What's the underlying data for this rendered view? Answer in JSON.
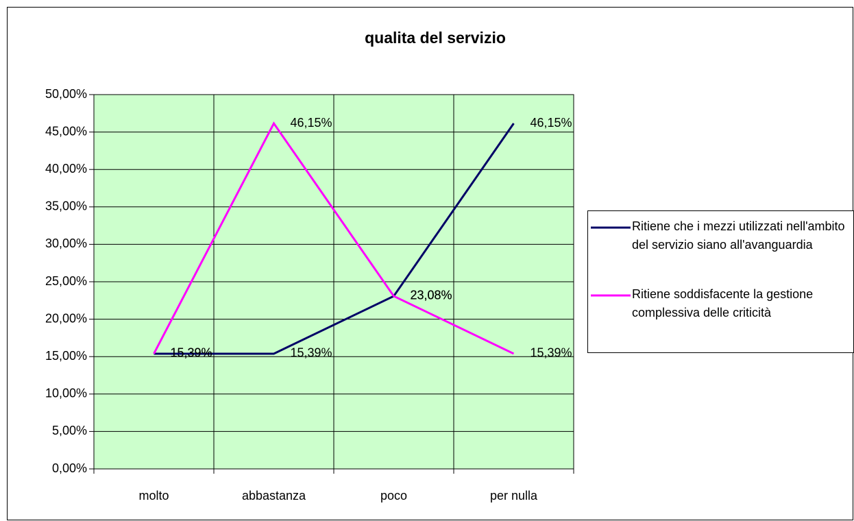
{
  "chart_data": {
    "type": "line",
    "title": "qualita del servizio",
    "categories": [
      "molto",
      "abbastanza",
      "poco",
      "per nulla"
    ],
    "series": [
      {
        "name": "Ritiene che i mezzi utilizzati nell'ambito del servizio siano all'avanguardia",
        "color": "#000066",
        "values": [
          15.39,
          15.39,
          23.08,
          46.15
        ],
        "value_labels": [
          "15,39%",
          "15,39%",
          "23,08%",
          "46,15%"
        ]
      },
      {
        "name": "Ritiene soddisfacente la gestione complessiva delle criticità",
        "color": "#ff00ff",
        "values": [
          15.39,
          46.15,
          23.08,
          15.39
        ],
        "value_labels": [
          "15,39%",
          "46,15%",
          "23,08%",
          "15,39%"
        ]
      }
    ],
    "ylim": [
      0,
      50
    ],
    "yticks": [
      {
        "value": 0,
        "label": "0,00%"
      },
      {
        "value": 5,
        "label": "5,00%"
      },
      {
        "value": 10,
        "label": "10,00%"
      },
      {
        "value": 15,
        "label": "15,00%"
      },
      {
        "value": 20,
        "label": "20,00%"
      },
      {
        "value": 25,
        "label": "25,00%"
      },
      {
        "value": 30,
        "label": "30,00%"
      },
      {
        "value": 35,
        "label": "35,00%"
      },
      {
        "value": 40,
        "label": "40,00%"
      },
      {
        "value": 45,
        "label": "45,00%"
      },
      {
        "value": 50,
        "label": "50,00%"
      }
    ],
    "grid": true,
    "plot_background": "#ccffcc",
    "legend": "right"
  }
}
